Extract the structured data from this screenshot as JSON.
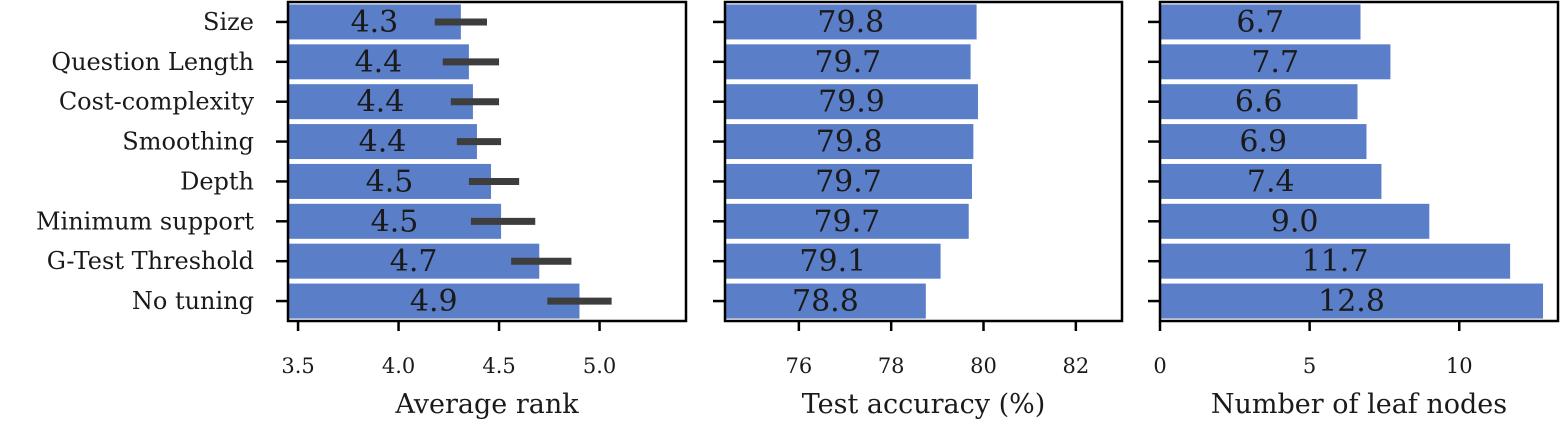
{
  "chart_data": [
    {
      "type": "bar",
      "orientation": "horizontal",
      "categories": [
        "Size",
        "Question Length",
        "Cost-complexity",
        "Smoothing",
        "Depth",
        "Minimum support",
        "G-Test Threshold",
        "No tuning"
      ],
      "values": [
        4.31,
        4.35,
        4.37,
        4.39,
        4.46,
        4.51,
        4.7,
        4.9
      ],
      "value_labels": [
        "4.3",
        "4.4",
        "4.4",
        "4.4",
        "4.5",
        "4.5",
        "4.7",
        "4.9"
      ],
      "error": [
        [
          4.18,
          4.44
        ],
        [
          4.22,
          4.5
        ],
        [
          4.26,
          4.5
        ],
        [
          4.29,
          4.51
        ],
        [
          4.35,
          4.6
        ],
        [
          4.36,
          4.68
        ],
        [
          4.56,
          4.86
        ],
        [
          4.74,
          5.06
        ]
      ],
      "xlabel": "Average rank",
      "xlim": [
        3.45,
        5.43
      ],
      "xticks": [
        3.5,
        4.0,
        4.5,
        5.0
      ],
      "xtick_labels": [
        "3.5",
        "4.0",
        "4.5",
        "5.0"
      ],
      "show_category_labels": true,
      "grid": false,
      "color": "#5a7ec8"
    },
    {
      "type": "bar",
      "orientation": "horizontal",
      "categories": [
        "Size",
        "Question Length",
        "Cost-complexity",
        "Smoothing",
        "Depth",
        "Minimum support",
        "G-Test Threshold",
        "No tuning"
      ],
      "values": [
        79.85,
        79.72,
        79.88,
        79.78,
        79.75,
        79.68,
        79.07,
        78.75
      ],
      "value_labels": [
        "79.8",
        "79.7",
        "79.9",
        "79.8",
        "79.7",
        "79.7",
        "79.1",
        "78.8"
      ],
      "xlabel": "Test accuracy (%)",
      "xlim": [
        74.4,
        83.0
      ],
      "xticks": [
        76,
        78,
        80,
        82
      ],
      "xtick_labels": [
        "76",
        "78",
        "80",
        "82"
      ],
      "show_category_labels": false,
      "grid": false,
      "color": "#5a7ec8"
    },
    {
      "type": "bar",
      "orientation": "horizontal",
      "categories": [
        "Size",
        "Question Length",
        "Cost-complexity",
        "Smoothing",
        "Depth",
        "Minimum support",
        "G-Test Threshold",
        "No tuning"
      ],
      "values": [
        6.7,
        7.7,
        6.6,
        6.9,
        7.4,
        9.0,
        11.7,
        12.8
      ],
      "value_labels": [
        "6.7",
        "7.7",
        "6.6",
        "6.9",
        "7.4",
        "9.0",
        "11.7",
        "12.8"
      ],
      "xlabel": "Number of leaf nodes",
      "xlim": [
        0,
        13.3
      ],
      "xticks": [
        0,
        5,
        10
      ],
      "xtick_labels": [
        "0",
        "5",
        "10"
      ],
      "show_category_labels": false,
      "grid": false,
      "color": "#5a7ec8"
    }
  ]
}
